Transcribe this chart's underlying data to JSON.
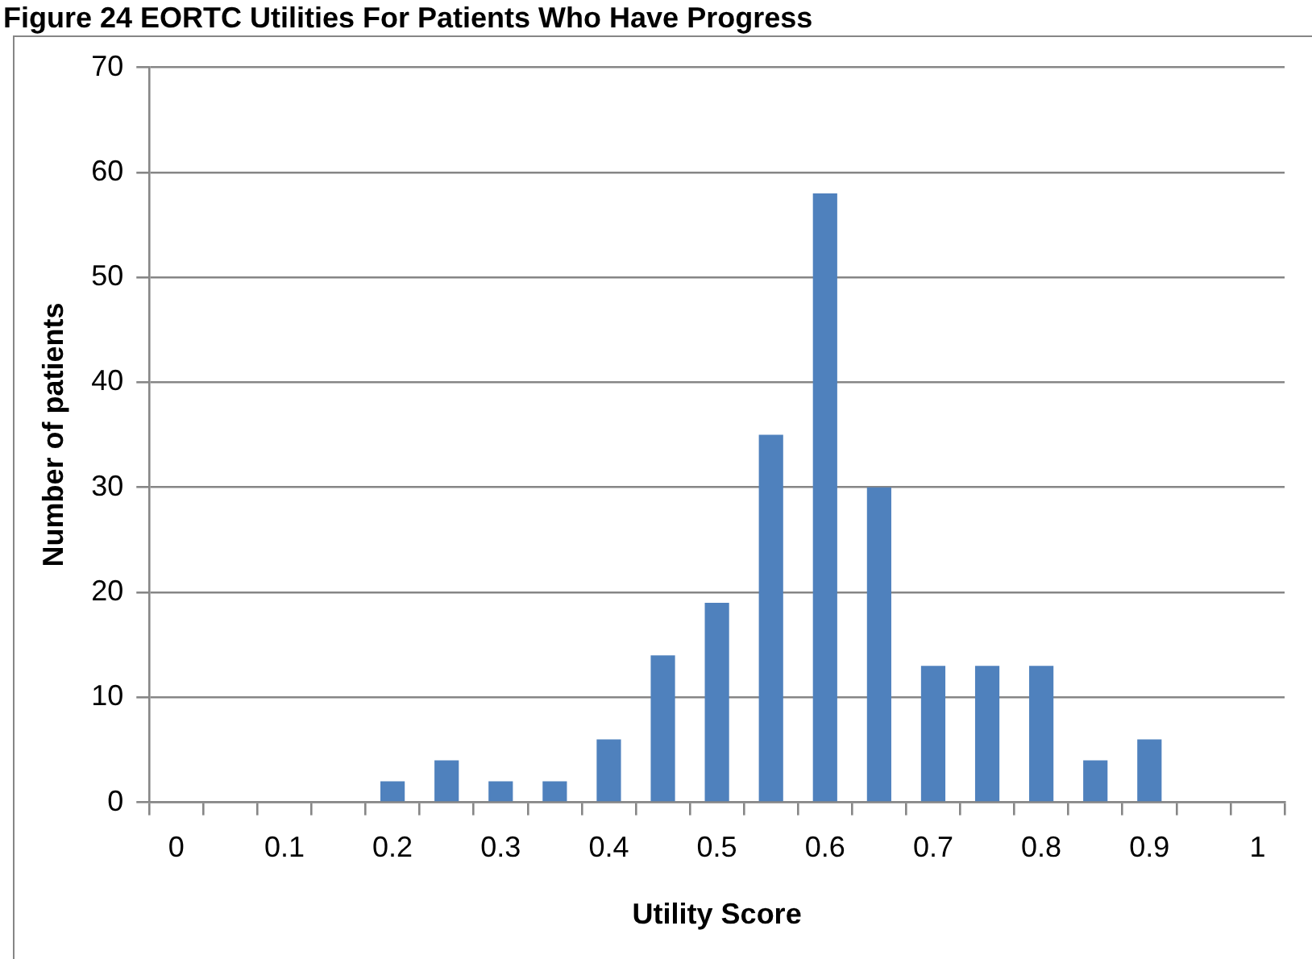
{
  "chart_data": {
    "type": "bar",
    "title": "Figure 24        EORTC Utilities For Patients Who Have Progress",
    "xlabel": "Utility Score",
    "ylabel": "Number of patients",
    "categories": [
      "0",
      null,
      "0.1",
      null,
      "0.2",
      null,
      "0.3",
      null,
      "0.4",
      null,
      "0.5",
      null,
      "0.6",
      null,
      "0.7",
      null,
      "0.8",
      null,
      "0.9",
      null,
      "1"
    ],
    "values": [
      0,
      0,
      0,
      0,
      2,
      4,
      2,
      2,
      6,
      14,
      19,
      35,
      58,
      30,
      13,
      13,
      13,
      4,
      6,
      0,
      0
    ],
    "color": "#4f81bd",
    "ylim": [
      0,
      70
    ],
    "yticks": [
      0,
      10,
      20,
      30,
      40,
      50,
      60,
      70
    ],
    "grid": "y"
  }
}
